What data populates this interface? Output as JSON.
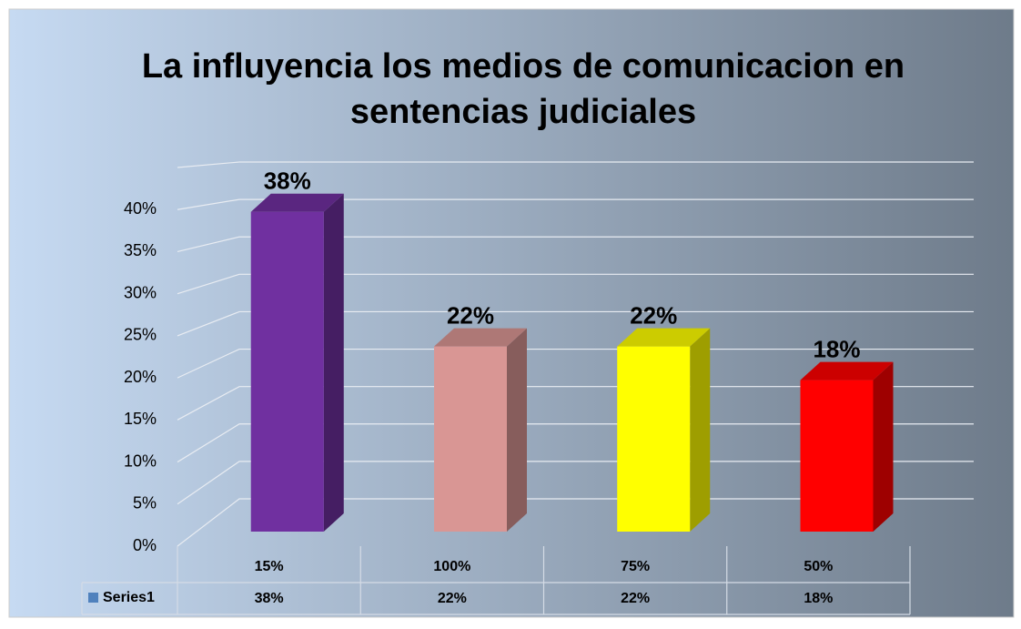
{
  "chart_data": {
    "type": "bar3d",
    "title": "La influyencia los medios de comunicacion en sentencias judiciales",
    "categories": [
      "15%",
      "100%",
      "75%",
      "50%"
    ],
    "series": [
      {
        "name": "Series1",
        "color": "#4f81bd",
        "values": [
          38,
          22,
          22,
          18
        ],
        "value_labels": [
          "38%",
          "22%",
          "22%",
          "18%"
        ],
        "colors": [
          "#7030a0",
          "#d99694",
          "#ffff00",
          "#ff0000"
        ]
      }
    ],
    "ylim": [
      0,
      45
    ],
    "yticks": [
      {
        "value": 0,
        "label": "0%"
      },
      {
        "value": 5,
        "label": "5%"
      },
      {
        "value": 10,
        "label": "10%"
      },
      {
        "value": 15,
        "label": "15%"
      },
      {
        "value": 20,
        "label": "20%"
      },
      {
        "value": 25,
        "label": "25%"
      },
      {
        "value": 30,
        "label": "30%"
      },
      {
        "value": 35,
        "label": "35%"
      },
      {
        "value": 40,
        "label": "40%"
      }
    ],
    "grid": true,
    "data_table": true
  }
}
